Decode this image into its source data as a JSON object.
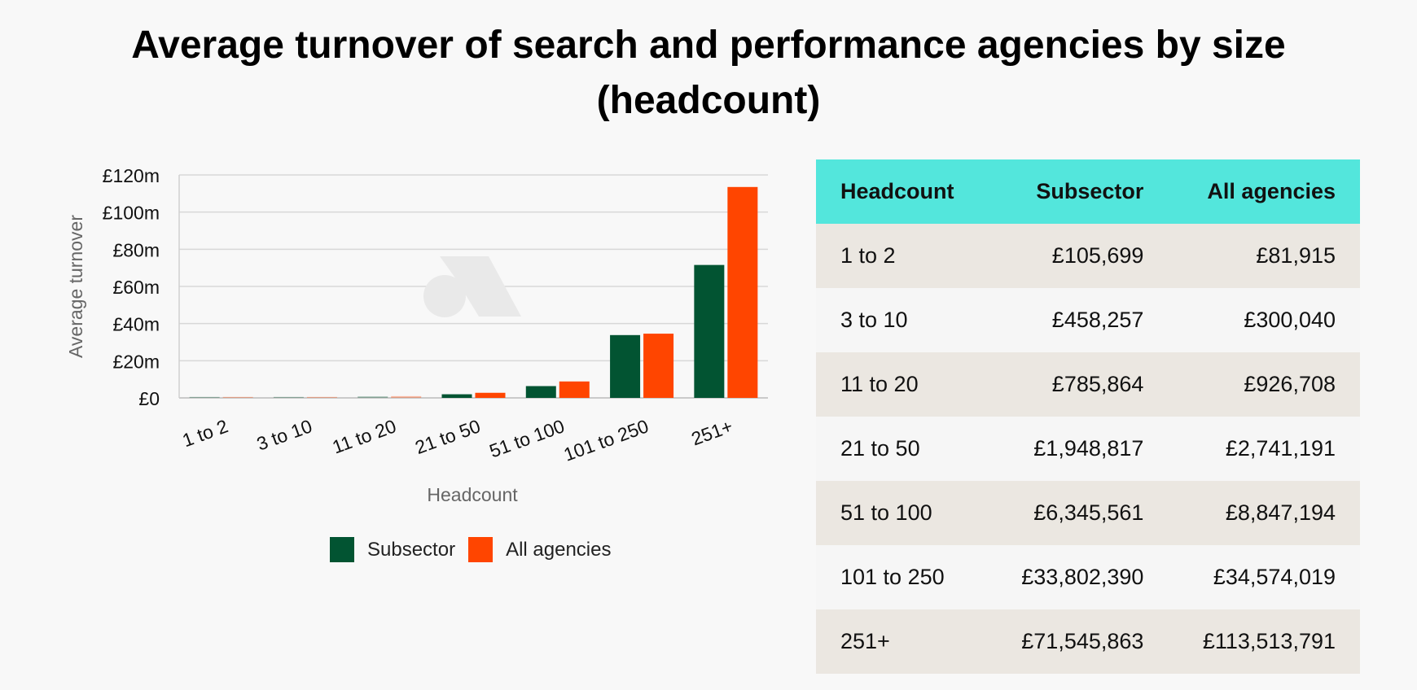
{
  "title_line1": "Average turnover of search and performance agencies by size",
  "title_line2": "(headcount)",
  "colors": {
    "subsector": "#025432",
    "all_agencies": "#ff4500",
    "header_bg": "#53e6dc",
    "grid": "#d8d8d8"
  },
  "chart_data": {
    "type": "bar",
    "xlabel": "Headcount",
    "ylabel": "Average turnover",
    "ylim": [
      0,
      120000000
    ],
    "yticks": [
      "£0",
      "£20m",
      "£40m",
      "£60m",
      "£80m",
      "£100m",
      "£120m"
    ],
    "categories": [
      "1 to 2",
      "3 to 10",
      "11 to 20",
      "21 to 50",
      "51 to 100",
      "101 to 250",
      "251+"
    ],
    "series": [
      {
        "name": "Subsector",
        "values": [
          105699,
          458257,
          785864,
          1948817,
          6345561,
          33802390,
          71545863
        ]
      },
      {
        "name": "All agencies",
        "values": [
          81915,
          300040,
          926708,
          2741191,
          8847194,
          34574019,
          113513791
        ]
      }
    ],
    "legend": "bottom",
    "grid": true
  },
  "legend": {
    "subsector": "Subsector",
    "all_agencies": "All agencies"
  },
  "table": {
    "headers": [
      "Headcount",
      "Subsector",
      "All agencies"
    ],
    "rows": [
      [
        "1 to 2",
        "£105,699",
        "£81,915"
      ],
      [
        "3 to 10",
        "£458,257",
        "£300,040"
      ],
      [
        "11 to 20",
        "£785,864",
        "£926,708"
      ],
      [
        "21 to 50",
        "£1,948,817",
        "£2,741,191"
      ],
      [
        "51 to 100",
        "£6,345,561",
        "£8,847,194"
      ],
      [
        "101 to 250",
        "£33,802,390",
        "£34,574,019"
      ],
      [
        "251+",
        "£71,545,863",
        "£113,513,791"
      ]
    ]
  }
}
